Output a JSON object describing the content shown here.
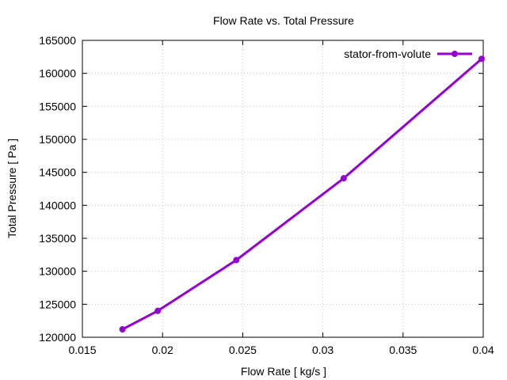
{
  "chart_data": {
    "type": "line",
    "title": "Flow Rate vs. Total Pressure",
    "xlabel": "Flow Rate [ kg/s ]",
    "ylabel": "Total Pressure [ Pa ]",
    "xlim": [
      0.015,
      0.04
    ],
    "ylim": [
      120000,
      165000
    ],
    "grid": true,
    "legend_position": "top-right",
    "x_ticks": [
      0.015,
      0.02,
      0.025,
      0.03,
      0.035,
      0.04
    ],
    "x_tick_labels": [
      "0.015",
      "0.02",
      "0.025",
      "0.03",
      "0.035",
      "0.04"
    ],
    "y_ticks": [
      120000,
      125000,
      130000,
      135000,
      140000,
      145000,
      150000,
      155000,
      160000,
      165000
    ],
    "y_tick_labels": [
      "120000",
      "125000",
      "130000",
      "135000",
      "140000",
      "145000",
      "150000",
      "155000",
      "160000",
      "165000"
    ],
    "series": [
      {
        "name": "stator-from-volute",
        "color": "#9400d3",
        "marker": "circle",
        "x": [
          0.0175,
          0.0197,
          0.0246,
          0.0313,
          0.0399
        ],
        "y": [
          121200,
          124000,
          131700,
          144100,
          162200
        ]
      }
    ]
  }
}
